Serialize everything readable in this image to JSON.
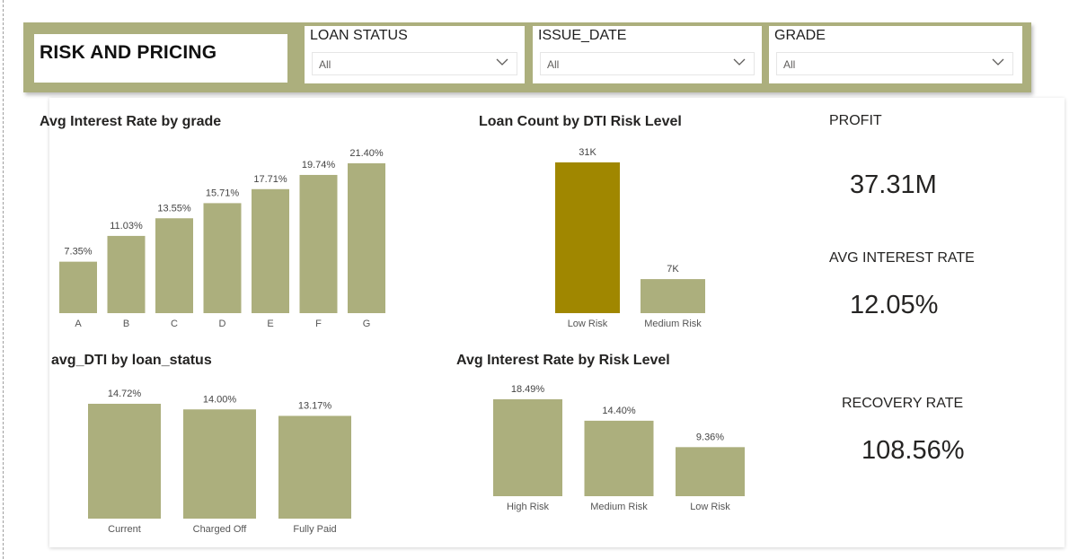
{
  "header": {
    "title": "RISK AND PRICING",
    "bar_color": "#acaf7d"
  },
  "slicers": [
    {
      "label": "LOAN STATUS",
      "value": "All"
    },
    {
      "label": "ISSUE_DATE",
      "value": "All"
    },
    {
      "label": "GRADE",
      "value": "All"
    }
  ],
  "kpis": {
    "profit": {
      "label": "PROFIT",
      "value": "37.31M"
    },
    "avg_interest_rate": {
      "label": "AVG INTEREST RATE",
      "value": "12.05%"
    },
    "recovery_rate": {
      "label": "RECOVERY RATE",
      "value": "108.56%"
    }
  },
  "chart_data": [
    {
      "id": "grade",
      "type": "bar",
      "title": "Avg Interest Rate by grade",
      "categories": [
        "A",
        "B",
        "C",
        "D",
        "E",
        "F",
        "G"
      ],
      "values": [
        7.35,
        11.03,
        13.55,
        15.71,
        17.71,
        19.74,
        21.4
      ],
      "labels": [
        "7.35%",
        "11.03%",
        "13.55%",
        "15.71%",
        "17.71%",
        "19.74%",
        "21.40%"
      ],
      "color": "#acaf7d",
      "ylim": [
        0,
        21.4
      ],
      "grid": false
    },
    {
      "id": "dti",
      "type": "bar",
      "title": "Loan Count by DTI Risk Level",
      "categories": [
        "Low Risk",
        "Medium Risk"
      ],
      "values": [
        31000,
        7000
      ],
      "labels": [
        "31K",
        "7K"
      ],
      "colors": [
        "#a08700",
        "#acaf7d"
      ],
      "ylim": [
        0,
        31000
      ],
      "grid": false
    },
    {
      "id": "status",
      "type": "bar",
      "title": "avg_DTI by loan_status",
      "categories": [
        "Current",
        "Charged Off",
        "Fully Paid"
      ],
      "values": [
        14.72,
        14.0,
        13.17
      ],
      "labels": [
        "14.72%",
        "14.00%",
        "13.17%"
      ],
      "color": "#acaf7d",
      "ylim": [
        0,
        14.72
      ],
      "grid": false
    },
    {
      "id": "risk",
      "type": "bar",
      "title": "Avg Interest Rate by Risk Level",
      "categories": [
        "High Risk",
        "Medium Risk",
        "Low Risk"
      ],
      "values": [
        18.49,
        14.4,
        9.36
      ],
      "labels": [
        "18.49%",
        "14.40%",
        "9.36%"
      ],
      "color": "#acaf7d",
      "ylim": [
        0,
        18.49
      ],
      "grid": false
    }
  ]
}
